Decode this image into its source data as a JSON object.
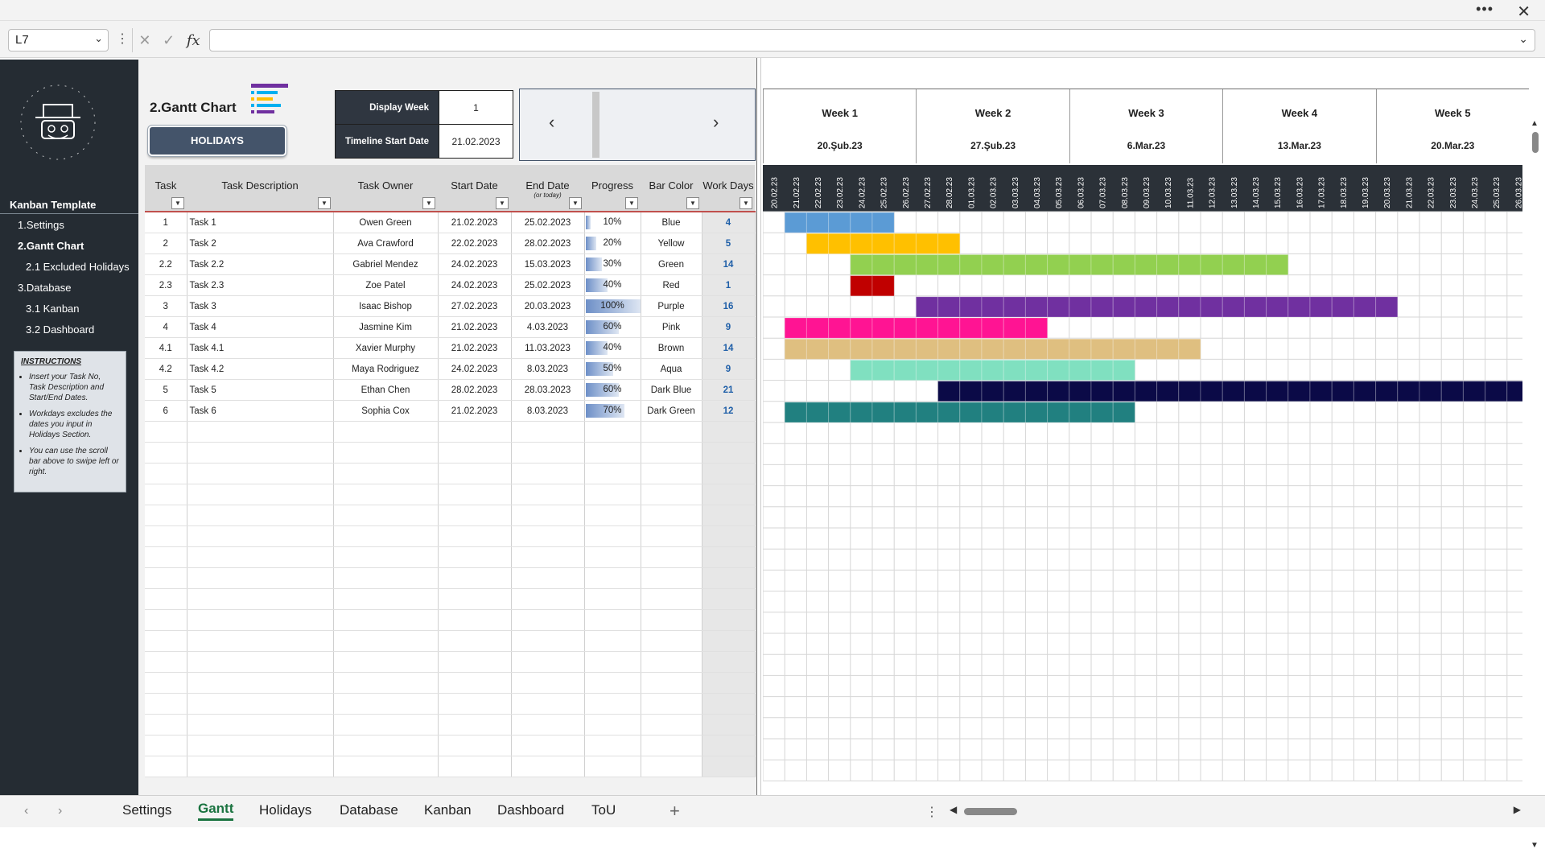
{
  "window": {
    "more_label": "•••",
    "close_label": "✕"
  },
  "formula_bar": {
    "name_box": "L7",
    "formula": ""
  },
  "sidebar": {
    "title": "Kanban Template",
    "nav": [
      {
        "label": "1.Settings",
        "active": false
      },
      {
        "label": "2.Gantt Chart",
        "active": true
      },
      {
        "label": "2.1 Excluded Holidays",
        "active": false
      },
      {
        "label": "3.Database",
        "active": false
      },
      {
        "label": "3.1 Kanban",
        "active": false
      },
      {
        "label": "3.2 Dashboard",
        "active": false
      }
    ],
    "instructions": {
      "title": "INSTRUCTIONS",
      "items": [
        "Insert your Task No, Task Description and Start/End Dates.",
        "Workdays excludes the dates you input in Holidays Section.",
        "You can use the scroll bar above to swipe left or right."
      ]
    }
  },
  "header": {
    "page_title": "2.Gantt Chart",
    "holidays_button": "HOLIDAYS",
    "display_week_label": "Display Week",
    "display_week_value": "1",
    "timeline_start_label": "Timeline Start Date",
    "timeline_start_value": "21.02.2023",
    "prev_label": "‹",
    "next_label": "›"
  },
  "table": {
    "columns": [
      {
        "label": "Task",
        "sub": ""
      },
      {
        "label": "Task Description",
        "sub": ""
      },
      {
        "label": "Task Owner",
        "sub": ""
      },
      {
        "label": "Start Date",
        "sub": ""
      },
      {
        "label": "End Date",
        "sub": "(or today)"
      },
      {
        "label": "Progress",
        "sub": ""
      },
      {
        "label": "Bar Color",
        "sub": ""
      },
      {
        "label": "Work Days",
        "sub": ""
      }
    ],
    "rows": [
      {
        "task": "1",
        "desc": "Task 1",
        "owner": "Owen Green",
        "start": "21.02.2023",
        "end": "25.02.2023",
        "progress": "10%",
        "progress_value": 0.1,
        "color": "Blue",
        "days": "4"
      },
      {
        "task": "2",
        "desc": "Task 2",
        "owner": "Ava Crawford",
        "start": "22.02.2023",
        "end": "28.02.2023",
        "progress": "20%",
        "progress_value": 0.2,
        "color": "Yellow",
        "days": "5"
      },
      {
        "task": "2.2",
        "desc": "Task 2.2",
        "owner": "Gabriel Mendez",
        "start": "24.02.2023",
        "end": "15.03.2023",
        "progress": "30%",
        "progress_value": 0.3,
        "color": "Green",
        "days": "14"
      },
      {
        "task": "2.3",
        "desc": "Task 2.3",
        "owner": "Zoe Patel",
        "start": "24.02.2023",
        "end": "25.02.2023",
        "progress": "40%",
        "progress_value": 0.4,
        "color": "Red",
        "days": "1"
      },
      {
        "task": "3",
        "desc": "Task 3",
        "owner": "Isaac Bishop",
        "start": "27.02.2023",
        "end": "20.03.2023",
        "progress": "100%",
        "progress_value": 1.0,
        "color": "Purple",
        "days": "16"
      },
      {
        "task": "4",
        "desc": "Task 4",
        "owner": "Jasmine Kim",
        "start": "21.02.2023",
        "end": "4.03.2023",
        "progress": "60%",
        "progress_value": 0.6,
        "color": "Pink",
        "days": "9"
      },
      {
        "task": "4.1",
        "desc": "Task 4.1",
        "owner": "Xavier Murphy",
        "start": "21.02.2023",
        "end": "11.03.2023",
        "progress": "40%",
        "progress_value": 0.4,
        "color": "Brown",
        "days": "14"
      },
      {
        "task": "4.2",
        "desc": "Task 4.2",
        "owner": "Maya Rodriguez",
        "start": "24.02.2023",
        "end": "8.03.2023",
        "progress": "50%",
        "progress_value": 0.5,
        "color": "Aqua",
        "days": "9"
      },
      {
        "task": "5",
        "desc": "Task 5",
        "owner": "Ethan Chen",
        "start": "28.02.2023",
        "end": "28.03.2023",
        "progress": "60%",
        "progress_value": 0.6,
        "color": "Dark Blue",
        "days": "21"
      },
      {
        "task": "6",
        "desc": "Task 6",
        "owner": "Sophia Cox",
        "start": "21.02.2023",
        "end": "8.03.2023",
        "progress": "70%",
        "progress_value": 0.7,
        "color": "Dark Green",
        "days": "12"
      }
    ]
  },
  "gantt": {
    "weeks": [
      {
        "name": "Week 1",
        "date": "20.Şub.23"
      },
      {
        "name": "Week 2",
        "date": "27.Şub.23"
      },
      {
        "name": "Week 3",
        "date": "6.Mar.23"
      },
      {
        "name": "Week 4",
        "date": "13.Mar.23"
      },
      {
        "name": "Week 5",
        "date": "20.Mar.23"
      }
    ],
    "days": [
      "20.02.23",
      "21.02.23",
      "22.02.23",
      "23.02.23",
      "24.02.23",
      "25.02.23",
      "26.02.23",
      "27.02.23",
      "28.02.23",
      "01.03.23",
      "02.03.23",
      "03.03.23",
      "04.03.23",
      "05.03.23",
      "06.03.23",
      "07.03.23",
      "08.03.23",
      "09.03.23",
      "10.03.23",
      "11.03.23",
      "12.03.23",
      "13.03.23",
      "14.03.23",
      "15.03.23",
      "16.03.23",
      "17.03.23",
      "18.03.23",
      "19.03.23",
      "20.03.23",
      "21.03.23",
      "22.03.23",
      "23.03.23",
      "24.03.23",
      "25.03.23",
      "26.03.23"
    ],
    "bars": [
      {
        "start_day": 1,
        "end_day": 5,
        "color": "#5b9bd5"
      },
      {
        "start_day": 2,
        "end_day": 8,
        "color": "#ffc000"
      },
      {
        "start_day": 4,
        "end_day": 23,
        "color": "#92d050"
      },
      {
        "start_day": 4,
        "end_day": 5,
        "color": "#c00000"
      },
      {
        "start_day": 7,
        "end_day": 28,
        "color": "#7030a0"
      },
      {
        "start_day": 1,
        "end_day": 12,
        "color": "#ff1493"
      },
      {
        "start_day": 1,
        "end_day": 19,
        "color": "#dfbf80"
      },
      {
        "start_day": 4,
        "end_day": 16,
        "color": "#80e0c0"
      },
      {
        "start_day": 8,
        "end_day": 34,
        "color": "#0b0a47"
      },
      {
        "start_day": 1,
        "end_day": 16,
        "color": "#218080"
      }
    ]
  },
  "tabs": [
    {
      "label": "Settings",
      "active": false
    },
    {
      "label": "Gantt",
      "active": true
    },
    {
      "label": "Holidays",
      "active": false
    },
    {
      "label": "Database",
      "active": false
    },
    {
      "label": "Kanban",
      "active": false
    },
    {
      "label": "Dashboard",
      "active": false
    },
    {
      "label": "ToU",
      "active": false
    }
  ]
}
